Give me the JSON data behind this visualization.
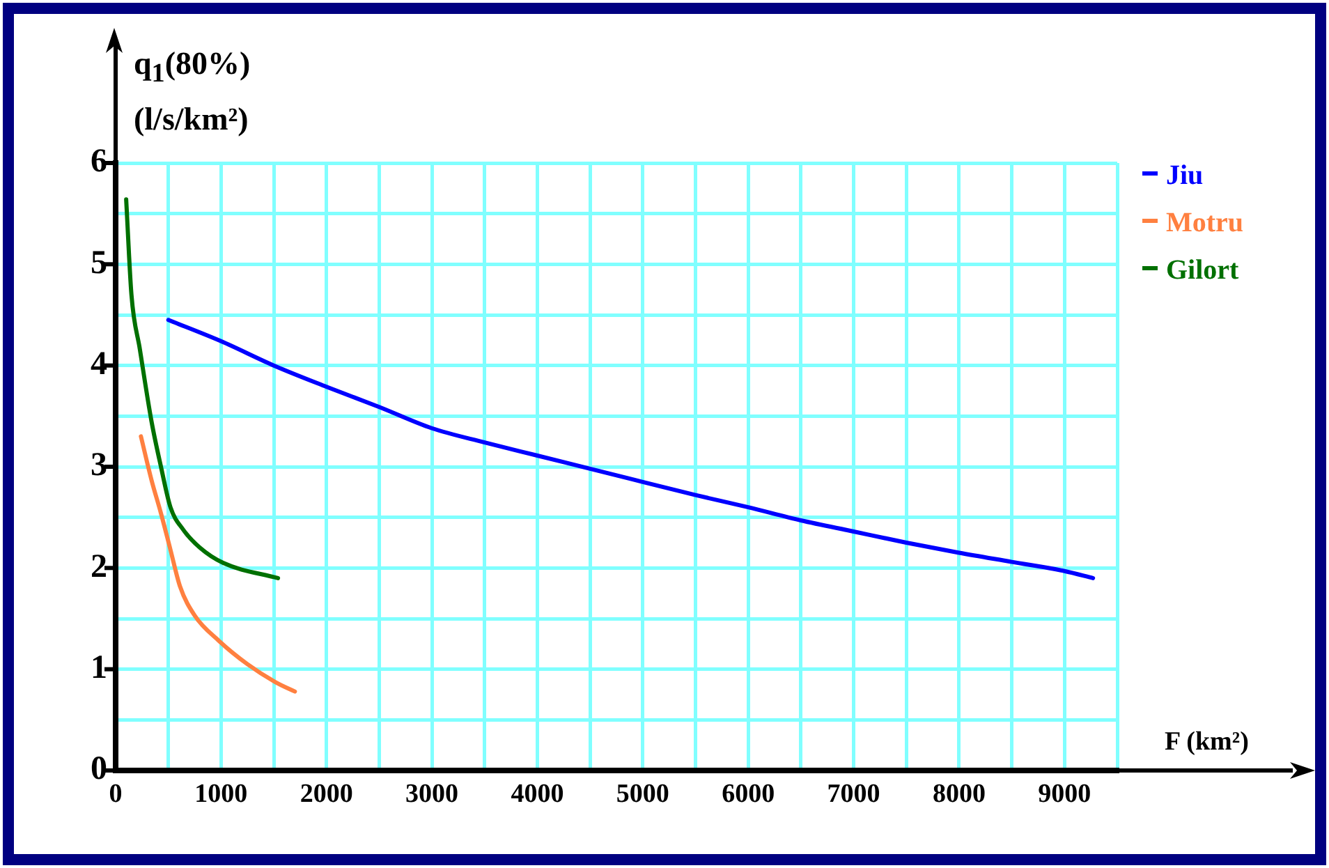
{
  "chart_data": {
    "type": "line",
    "xlabel": "F (km²)",
    "ylabel": "q$_{1}$(80%) (l/s/km²)",
    "xlim": [
      0,
      9500
    ],
    "xticks": [
      0,
      {
        "value": 500,
        "label": null
      },
      1000,
      {
        "value": 1500,
        "label": null
      },
      2000,
      {
        "value": 2500,
        "label": null
      },
      3000,
      {
        "value": 3500,
        "label": null
      },
      4000,
      {
        "value": 4500,
        "label": null
      },
      5000,
      {
        "value": 5500,
        "label": null
      },
      6000,
      {
        "value": 6500,
        "label": null
      },
      7000,
      {
        "value": 7500,
        "label": null
      },
      8000,
      {
        "value": 8500,
        "label": null
      },
      9000,
      {
        "value": 9500,
        "label": null
      }
    ],
    "ylim": [
      0,
      6
    ],
    "yticks": [
      0,
      {
        "value": 0.5,
        "label": null
      },
      1,
      {
        "value": 1.5,
        "label": null
      },
      2,
      {
        "value": 2.5,
        "label": null
      },
      3,
      {
        "value": 3.5,
        "label": null
      },
      4,
      {
        "value": 4.5,
        "label": null
      },
      5,
      {
        "value": 5.5,
        "label": null
      },
      6
    ],
    "grid": true,
    "legend": "top right",
    "marker": "none",
    "line_style": "solid",
    "series": [
      {
        "name": "Jiu",
        "color": "#0000ff",
        "x": [
          500,
          1000,
          1500,
          2000,
          2500,
          3000,
          3500,
          4000,
          4500,
          5000,
          5500,
          6000,
          6500,
          7000,
          7500,
          8000,
          8500,
          9000,
          9270
        ],
        "values": [
          4.45,
          4.24,
          4.0,
          3.79,
          3.59,
          3.38,
          3.24,
          3.11,
          2.98,
          2.85,
          2.72,
          2.6,
          2.47,
          2.36,
          2.25,
          2.15,
          2.06,
          1.97,
          1.9
        ]
      },
      {
        "name": "Motru",
        "color": "#ff8040",
        "x": [
          240,
          340,
          430,
          520,
          610,
          750,
          980,
          1250,
          1520,
          1700
        ],
        "values": [
          3.3,
          2.87,
          2.54,
          2.18,
          1.82,
          1.53,
          1.28,
          1.05,
          0.87,
          0.78
        ]
      },
      {
        "name": "Gilort",
        "color": "#007000",
        "x": [
          100,
          150,
          230,
          340,
          430,
          520,
          640,
          800,
          1020,
          1540
        ],
        "values": [
          5.64,
          4.7,
          4.16,
          3.45,
          3.0,
          2.6,
          2.38,
          2.2,
          2.05,
          1.9
        ]
      }
    ]
  }
}
